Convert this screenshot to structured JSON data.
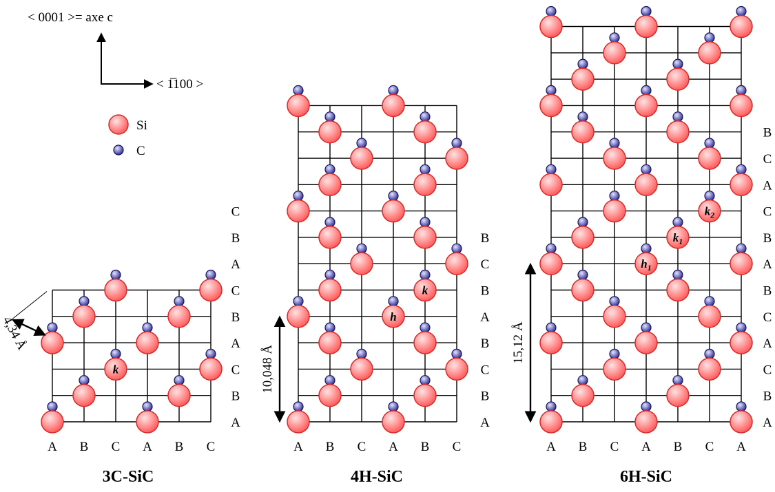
{
  "colors": {
    "silicon": "#ff5a5a",
    "silicon_light": "#ffe2e2",
    "silicon_edge": "#d82a2a",
    "carbon": "#2e2e96",
    "carbon_light": "#e4e4ff",
    "carbon_edge": "#161660",
    "line": "#000000"
  },
  "axes_key": {
    "vertical_label": "< 0001 >= axe c",
    "horizontal_label": "< 1̅100 >"
  },
  "legend": [
    {
      "label": "Si",
      "kind": "silicon"
    },
    {
      "label": "C",
      "kind": "carbon"
    }
  ],
  "panels": [
    {
      "title": "3C-SiC",
      "columns": [
        "A",
        "B",
        "C",
        "A",
        "B",
        "C"
      ],
      "row_labels": [
        "A",
        "B",
        "C",
        "A",
        "B",
        "C",
        "A",
        "B",
        "C"
      ],
      "stacking": "ABCABC",
      "site_labels": [
        {
          "text": "k",
          "row": 2,
          "col": 2
        }
      ],
      "dimension": {
        "text": "4,34 Å"
      }
    },
    {
      "title": "4H-SiC",
      "columns": [
        "A",
        "B",
        "C",
        "A",
        "B",
        "C"
      ],
      "row_labels": [
        "A",
        "B",
        "C",
        "B",
        "A",
        "B",
        "C",
        "B"
      ],
      "stacking": "ABCBABCBABCBA",
      "site_labels": [
        {
          "text": "h",
          "row": 4,
          "col": 3
        },
        {
          "text": "k",
          "row": 5,
          "col": 4
        }
      ],
      "dimension": {
        "text": "10,048 Å"
      }
    },
    {
      "title": "6H-SiC",
      "columns": [
        "A",
        "B",
        "C",
        "A",
        "B",
        "C",
        "A"
      ],
      "row_labels": [
        "A",
        "B",
        "C",
        "A",
        "C",
        "B",
        "A",
        "B",
        "C",
        "A",
        "C",
        "B"
      ],
      "stacking": "ABCACBABCACBABCA",
      "site_labels": [
        {
          "text": "h",
          "sub": "1",
          "row": 6,
          "col": 3
        },
        {
          "text": "k",
          "sub": "1",
          "row": 7,
          "col": 4
        },
        {
          "text": "k",
          "sub": "2",
          "row": 8,
          "col": 5
        }
      ],
      "dimension": {
        "text": "15,12 Å"
      }
    }
  ]
}
